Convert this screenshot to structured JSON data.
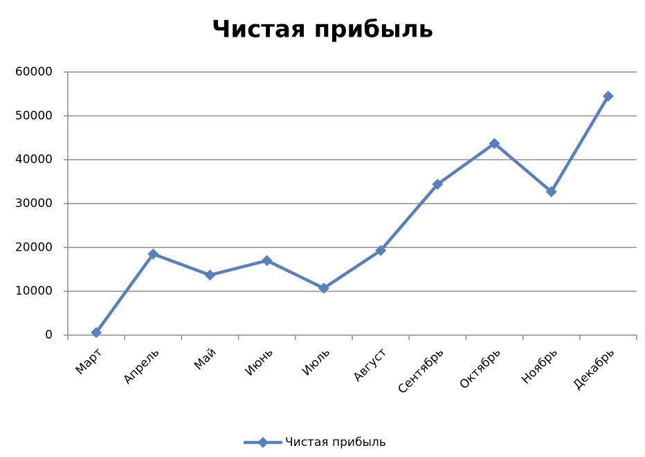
{
  "chart_data": {
    "type": "line",
    "title": "Чистая прибыль",
    "categories": [
      "Март",
      "Апрель",
      "Май",
      "Июнь",
      "Июль",
      "Август",
      "Сентябрь",
      "Октябрь",
      "Ноябрь",
      "Декабрь"
    ],
    "series": [
      {
        "name": "Чистая прибыль",
        "color": "#5a7fbf",
        "values": [
          600,
          18500,
          13700,
          17000,
          10700,
          19300,
          34400,
          43700,
          32700,
          54500
        ]
      }
    ],
    "ylim": [
      0,
      60000
    ],
    "yticks": [
      0,
      10000,
      20000,
      30000,
      40000,
      50000,
      60000
    ],
    "grid": true,
    "legend": "bottom"
  }
}
